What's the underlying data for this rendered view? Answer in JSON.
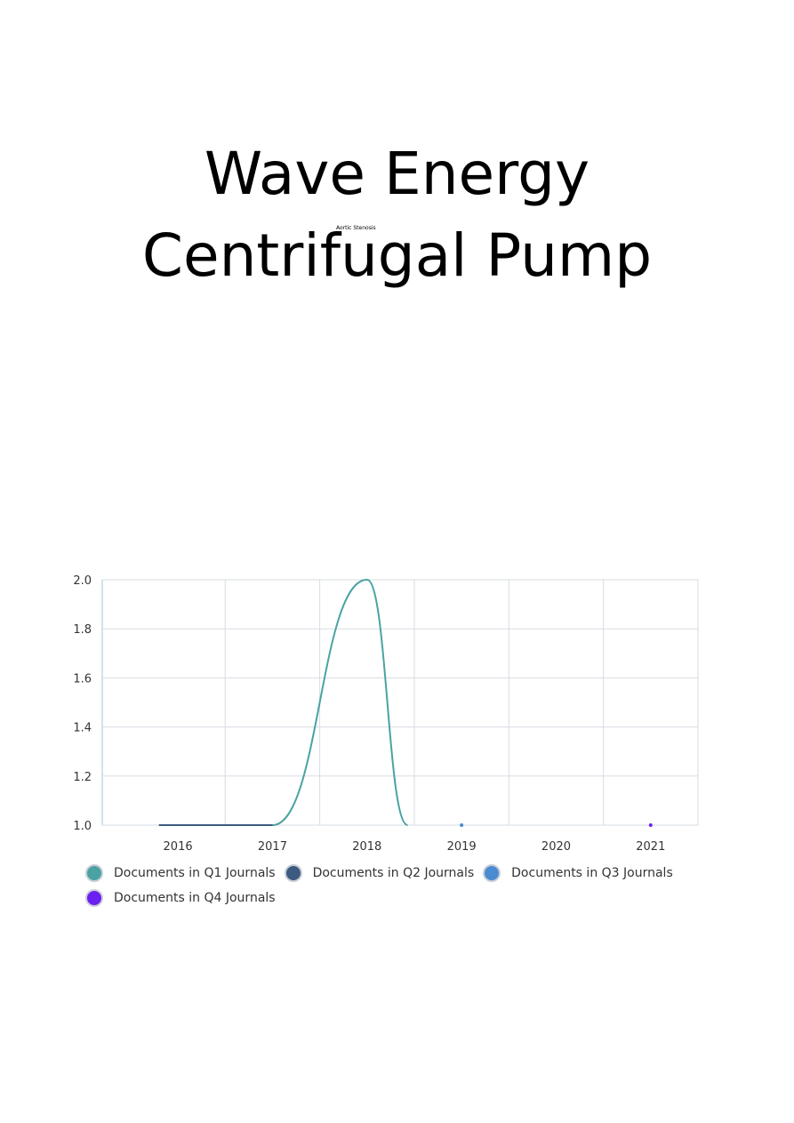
{
  "page": {
    "title_line1": "Wave Energy",
    "title_line2": "Centrifugal Pump",
    "small_label": "Aortic Stenosis"
  },
  "chart_data": {
    "type": "line",
    "title": "",
    "xlabel": "",
    "ylabel": "",
    "x": [
      2016,
      2017,
      2018,
      2019,
      2020,
      2021
    ],
    "xlim": [
      2015.2,
      2021.5
    ],
    "ylim": [
      1.0,
      2.0
    ],
    "yticks": [
      "1.0",
      "1.2",
      "1.4",
      "1.6",
      "1.8",
      "2.0"
    ],
    "xticks": [
      "2016",
      "2017",
      "2018",
      "2019",
      "2020",
      "2021"
    ],
    "grid": true,
    "legend_position": "bottom",
    "series": [
      {
        "name": "Documents in Q1 Journals",
        "color": "#4aa3a2",
        "x": [
          2015.8,
          2016.5,
          2017,
          2018,
          2018.43
        ],
        "values": [
          1,
          1,
          1,
          2,
          1
        ]
      },
      {
        "name": "Documents in Q2 Journals",
        "color": "#3d5a80",
        "x": [
          2015.8,
          2017
        ],
        "values": [
          1,
          1
        ]
      },
      {
        "name": "Documents in Q3 Journals",
        "color": "#4a8bd1",
        "x": [
          2019
        ],
        "values": [
          1
        ]
      },
      {
        "name": "Documents in Q4 Journals",
        "color": "#6b1ff0",
        "x": [
          2021
        ],
        "values": [
          1
        ]
      }
    ]
  }
}
